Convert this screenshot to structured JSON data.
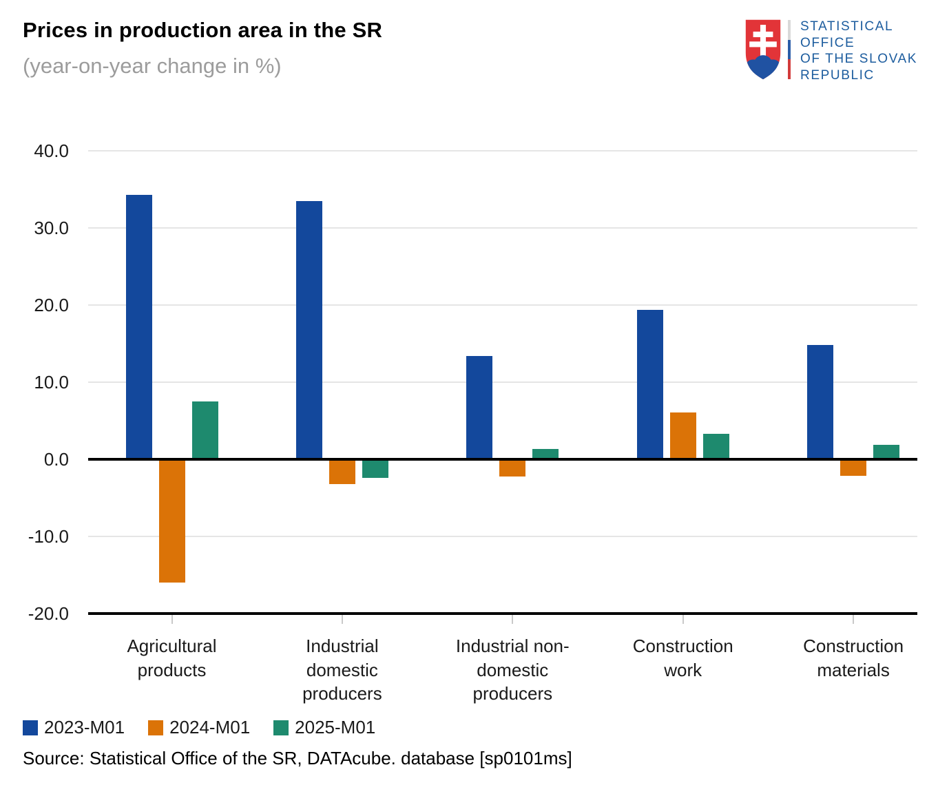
{
  "header": {
    "title": "Prices in production area in the SR",
    "subtitle": "(year-on-year change in %)"
  },
  "logo": {
    "org_lines": [
      "STATISTICAL",
      "OFFICE",
      "OF THE SLOVAK",
      "REPUBLIC"
    ],
    "colors": {
      "text_blue": "#1c5c9e",
      "shield_red": "#e23438",
      "hill_blue": "#2052a2",
      "divider": [
        "#d9d9d9",
        "#2b5da8",
        "#d23b3b"
      ]
    }
  },
  "chart_data": {
    "type": "bar",
    "title": "Prices in production area in the SR",
    "subtitle": "(year-on-year change in %)",
    "categories": [
      "Agricultural products",
      "Industrial domestic producers",
      "Industrial non-domestic producers",
      "Construction work",
      "Construction materials"
    ],
    "category_label_lines": [
      [
        "Agricultural",
        "products"
      ],
      [
        "Industrial",
        "domestic",
        "producers"
      ],
      [
        "Industrial non-",
        "domestic",
        "producers"
      ],
      [
        "Construction",
        "work"
      ],
      [
        "Construction",
        "materials"
      ]
    ],
    "series": [
      {
        "name": "2023-M01",
        "color": "#13489c",
        "values": [
          34.3,
          33.5,
          13.4,
          19.4,
          14.8
        ]
      },
      {
        "name": "2024-M01",
        "color": "#db7307",
        "values": [
          -16.0,
          -3.2,
          -2.2,
          6.1,
          -2.1
        ]
      },
      {
        "name": "2025-M01",
        "color": "#1e8a6e",
        "values": [
          7.5,
          -2.4,
          1.3,
          3.3,
          1.9
        ]
      }
    ],
    "xlabel": "",
    "ylabel": "",
    "ylim": [
      -20,
      40
    ],
    "yticks": [
      40,
      30,
      20,
      10,
      0,
      -10,
      -20
    ],
    "ytick_labels": [
      "40.0",
      "30.0",
      "20.0",
      "10.0",
      "0.0",
      "-10.0",
      "-20.0"
    ],
    "grid": true,
    "gridline_color": "#e5e5e5",
    "zero_line_color": "#000000",
    "legend_position": "bottom-left"
  },
  "source": {
    "text": "Source: Statistical Office of the SR, DATAcube. database [sp0101ms]"
  }
}
